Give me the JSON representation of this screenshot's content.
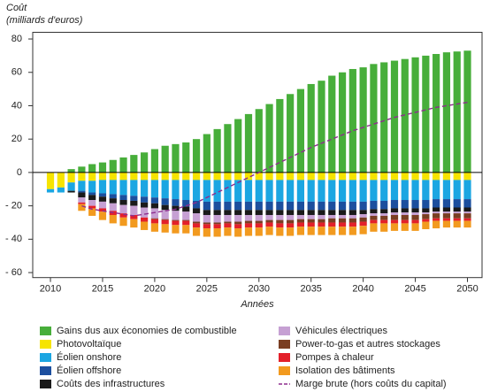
{
  "chart_data": {
    "type": "bar",
    "stacked": true,
    "ylabel": [
      "Coût",
      "(milliards d'euros)"
    ],
    "xlabel": "Années",
    "x": [
      2010,
      2011,
      2012,
      2013,
      2014,
      2015,
      2016,
      2017,
      2018,
      2019,
      2020,
      2021,
      2022,
      2023,
      2024,
      2025,
      2026,
      2027,
      2028,
      2029,
      2030,
      2031,
      2032,
      2033,
      2034,
      2035,
      2036,
      2037,
      2038,
      2039,
      2040,
      2041,
      2042,
      2043,
      2044,
      2045,
      2046,
      2047,
      2048,
      2049,
      2050
    ],
    "xlim": [
      2008.3,
      2051.4
    ],
    "xticks": [
      2010,
      2015,
      2020,
      2025,
      2030,
      2035,
      2040,
      2045,
      2050
    ],
    "ylim": [
      -63,
      84
    ],
    "yticks": [
      80,
      60,
      40,
      20,
      0,
      {
        "value": -20,
        "label": "- 20"
      },
      {
        "value": -40,
        "label": "- 40"
      },
      {
        "value": -60,
        "label": "- 60"
      }
    ],
    "series": [
      {
        "name": "Gains dus aux économies de combustible",
        "color": "#47ae3a",
        "values": [
          0,
          0,
          2,
          3.5,
          5,
          6,
          7.5,
          9,
          10.5,
          12,
          14,
          16,
          17,
          18,
          20,
          23,
          26,
          29,
          32,
          35,
          38,
          41,
          44,
          47,
          50,
          53,
          55,
          58,
          60,
          62,
          63,
          65,
          66,
          67,
          68,
          69,
          70,
          71,
          72,
          72.5,
          73
        ]
      },
      {
        "name": "Photovoltaïque",
        "color": "#f6e400",
        "values": [
          -10,
          -9,
          -6,
          -5,
          -5,
          -4.5,
          -4.5,
          -4.5,
          -4.5,
          -4.5,
          -4.5,
          -4.5,
          -4.5,
          -4.5,
          -4.5,
          -4.5,
          -4.5,
          -4.5,
          -4.5,
          -4.5,
          -4.5,
          -4.5,
          -4.5,
          -4.5,
          -4.5,
          -4.5,
          -4.5,
          -4.5,
          -4.5,
          -4.5,
          -4.5,
          -4.5,
          -4.5,
          -4.5,
          -4.5,
          -4.5,
          -4.5,
          -4.5,
          -4.5,
          -4.5,
          -4.5
        ]
      },
      {
        "name": "Éolien onshore",
        "color": "#1ba6e2",
        "values": [
          -2,
          -3,
          -5,
          -6,
          -7,
          -8,
          -8.5,
          -9,
          -9.5,
          -10,
          -10.5,
          -11,
          -11.5,
          -12,
          -12.5,
          -13,
          -13,
          -13,
          -13,
          -13,
          -13,
          -13,
          -13,
          -13,
          -13,
          -13,
          -13,
          -13,
          -13,
          -13,
          -13,
          -12.5,
          -12.5,
          -12,
          -12,
          -12,
          -12,
          -11.5,
          -11.5,
          -11.5,
          -11.5
        ]
      },
      {
        "name": "Éolien offshore",
        "color": "#1c4f9e",
        "values": [
          0,
          0,
          0,
          -1,
          -1.5,
          -2,
          -2.5,
          -3,
          -3,
          -3.5,
          -3.5,
          -4,
          -4,
          -4,
          -4.5,
          -5,
          -5,
          -5,
          -5,
          -5,
          -5,
          -5,
          -5,
          -5,
          -5,
          -5,
          -5,
          -5,
          -5,
          -5,
          -5,
          -5,
          -5,
          -5,
          -5,
          -5,
          -5,
          -5,
          -5,
          -5,
          -5
        ]
      },
      {
        "name": "Coûts des infrastructures",
        "color": "#1a1a1a",
        "values": [
          0,
          0,
          -1,
          -3,
          -3,
          -3,
          -3,
          -3,
          -3,
          -3,
          -3,
          -3,
          -3,
          -3,
          -3,
          -3,
          -3,
          -3,
          -3,
          -3,
          -3,
          -3,
          -3,
          -3,
          -3,
          -3,
          -3,
          -3,
          -3,
          -3,
          -2.5,
          -2.5,
          -2.5,
          -2.5,
          -2.5,
          -2.5,
          -2.5,
          -2.5,
          -2.5,
          -2.5,
          -2.5
        ]
      },
      {
        "name": "Véhicules électriques",
        "color": "#c6a0d3",
        "values": [
          0,
          0,
          0,
          -3,
          -3.5,
          -4,
          -4.5,
          -5,
          -5.5,
          -6,
          -6,
          -5.5,
          -5.5,
          -5,
          -5,
          -4.5,
          -4.5,
          -4,
          -4,
          -3.5,
          -3.5,
          -3,
          -3,
          -3,
          -2.5,
          -2.5,
          -2.5,
          -2,
          -2,
          -2,
          -2,
          -1.5,
          -1.5,
          -1.5,
          -1.5,
          -1.5,
          -1,
          -1,
          -1,
          -1,
          -1
        ]
      },
      {
        "name": "Power-to-gas et autres stockages",
        "color": "#7a3e22",
        "values": [
          0,
          0,
          0,
          0,
          0,
          0,
          0,
          0,
          0,
          0,
          -0.5,
          -0.5,
          -0.5,
          -0.5,
          -1,
          -1,
          -1,
          -1,
          -1.5,
          -1.5,
          -1.5,
          -1.5,
          -2,
          -2,
          -2,
          -2,
          -2,
          -2.5,
          -2.5,
          -2.5,
          -2.5,
          -2.5,
          -2.5,
          -3,
          -3,
          -3,
          -3,
          -3,
          -3,
          -3,
          -3
        ]
      },
      {
        "name": "Pompes à chaleur",
        "color": "#e3202a",
        "values": [
          0,
          0,
          0,
          -1,
          -1.5,
          -2,
          -2.5,
          -2.5,
          -2.5,
          -2.5,
          -2.5,
          -2.5,
          -2.5,
          -2.5,
          -2.5,
          -2.5,
          -2.5,
          -2.5,
          -2.5,
          -2.5,
          -2.5,
          -2.5,
          -2.5,
          -2.5,
          -2.5,
          -2.5,
          -2.5,
          -2.5,
          -2.5,
          -2.5,
          -2.5,
          -2,
          -2,
          -2,
          -2,
          -2,
          -1.5,
          -1.5,
          -1.5,
          -1.5,
          -1.5
        ]
      },
      {
        "name": "Isolation des bâtiments",
        "color": "#f29a1f",
        "values": [
          0,
          0,
          0,
          -4,
          -4.5,
          -5,
          -5,
          -5,
          -5,
          -5,
          -5,
          -5,
          -5,
          -5,
          -5,
          -5,
          -5,
          -5,
          -5,
          -5,
          -5,
          -5,
          -5,
          -5,
          -5,
          -5,
          -5,
          -5,
          -5,
          -5,
          -5,
          -5,
          -5,
          -4.5,
          -4.5,
          -4.5,
          -4.5,
          -4.5,
          -4,
          -4,
          -4
        ]
      },
      {
        "name": "Marge brute (hors coûts du capital)",
        "color": "#8e2d8e",
        "type": "line",
        "linestyle": "dashed",
        "values": [
          null,
          null,
          null,
          -20,
          -22,
          -23,
          -24,
          -25,
          -26,
          -25,
          -24,
          -23,
          -22,
          -20,
          -18,
          -15,
          -12,
          -9,
          -6,
          -3,
          0,
          3,
          6,
          9,
          12,
          15,
          17.5,
          20,
          22.5,
          25,
          27,
          29,
          31,
          33,
          34.5,
          36,
          37.5,
          39,
          40,
          41,
          42
        ]
      }
    ]
  }
}
